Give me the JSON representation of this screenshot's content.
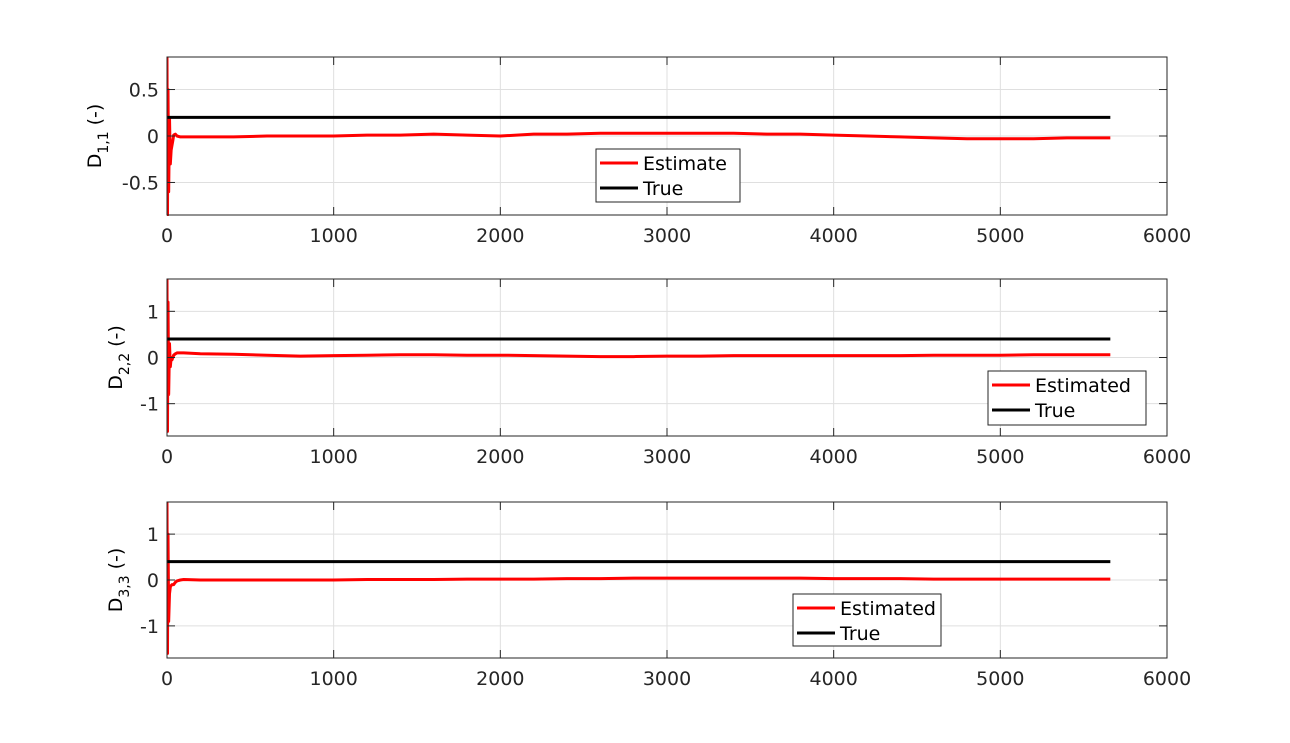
{
  "chart_data": [
    {
      "type": "line",
      "ylabel": {
        "base": "D",
        "sub": "1,1",
        "unit": "(-)"
      },
      "xlim": [
        0,
        6000
      ],
      "ylim": [
        -0.85,
        0.85
      ],
      "xticks": [
        0,
        1000,
        2000,
        3000,
        4000,
        5000,
        6000
      ],
      "yticks": [
        -0.5,
        0,
        0.5
      ],
      "ytick_labels": [
        "-0.5",
        "0",
        "0.5"
      ],
      "grid": true,
      "legend_position": "center",
      "series": [
        {
          "name": "Estimate",
          "color": "#ff0000",
          "x": [
            0,
            3,
            6,
            10,
            15,
            20,
            25,
            30,
            35,
            40,
            50,
            60,
            80,
            100,
            200,
            400,
            600,
            800,
            1000,
            1200,
            1400,
            1600,
            1800,
            2000,
            2200,
            2400,
            2600,
            2800,
            3000,
            3200,
            3400,
            3600,
            3800,
            4000,
            4200,
            4400,
            4600,
            4800,
            5000,
            5200,
            5400,
            5660
          ],
          "y": [
            0.85,
            -0.85,
            0.5,
            -0.6,
            0.2,
            -0.3,
            -0.15,
            -0.1,
            -0.05,
            0.01,
            0.02,
            0.0,
            -0.01,
            -0.01,
            -0.01,
            -0.01,
            0.0,
            0.0,
            0.0,
            0.01,
            0.01,
            0.02,
            0.01,
            0.0,
            0.02,
            0.02,
            0.03,
            0.03,
            0.03,
            0.03,
            0.03,
            0.02,
            0.02,
            0.01,
            0.0,
            -0.01,
            -0.02,
            -0.03,
            -0.03,
            -0.03,
            -0.02,
            -0.02
          ]
        },
        {
          "name": "True",
          "color": "#000000",
          "x": [
            0,
            5660
          ],
          "y": [
            0.2,
            0.2
          ]
        }
      ]
    },
    {
      "type": "line",
      "ylabel": {
        "base": "D",
        "sub": "2,2",
        "unit": "(-)"
      },
      "xlim": [
        0,
        6000
      ],
      "ylim": [
        -1.7,
        1.7
      ],
      "xticks": [
        0,
        1000,
        2000,
        3000,
        4000,
        5000,
        6000
      ],
      "yticks": [
        -1,
        0,
        1
      ],
      "ytick_labels": [
        "-1",
        "0",
        "1"
      ],
      "grid": true,
      "legend_position": "bottom-right",
      "series": [
        {
          "name": "Estimated",
          "color": "#ff0000",
          "x": [
            0,
            3,
            6,
            10,
            15,
            20,
            25,
            30,
            40,
            50,
            60,
            80,
            100,
            200,
            400,
            600,
            800,
            1000,
            1200,
            1400,
            1600,
            1800,
            2000,
            2200,
            2400,
            2600,
            2800,
            3000,
            3200,
            3400,
            3600,
            3800,
            4000,
            4200,
            4400,
            4600,
            4800,
            5000,
            5200,
            5400,
            5660
          ],
          "y": [
            1.7,
            -1.6,
            1.2,
            -0.8,
            0.3,
            -0.2,
            0.0,
            -0.05,
            0.05,
            0.08,
            0.1,
            0.1,
            0.1,
            0.08,
            0.07,
            0.05,
            0.03,
            0.04,
            0.05,
            0.06,
            0.06,
            0.05,
            0.05,
            0.04,
            0.03,
            0.02,
            0.02,
            0.03,
            0.03,
            0.04,
            0.04,
            0.04,
            0.04,
            0.04,
            0.04,
            0.05,
            0.05,
            0.05,
            0.06,
            0.06,
            0.06
          ]
        },
        {
          "name": "True",
          "color": "#000000",
          "x": [
            0,
            5660
          ],
          "y": [
            0.4,
            0.4
          ]
        }
      ]
    },
    {
      "type": "line",
      "ylabel": {
        "base": "D",
        "sub": "3,3",
        "unit": "(-)"
      },
      "xlim": [
        0,
        6000
      ],
      "ylim": [
        -1.7,
        1.7
      ],
      "xticks": [
        0,
        1000,
        2000,
        3000,
        4000,
        5000,
        6000
      ],
      "yticks": [
        -1,
        0,
        1
      ],
      "ytick_labels": [
        "-1",
        "0",
        "1"
      ],
      "grid": true,
      "legend_position": "bottom-center",
      "series": [
        {
          "name": "Estimated",
          "color": "#ff0000",
          "x": [
            0,
            3,
            6,
            10,
            15,
            20,
            25,
            30,
            40,
            50,
            60,
            80,
            100,
            200,
            400,
            600,
            800,
            1000,
            1200,
            1400,
            1600,
            1800,
            2000,
            2200,
            2400,
            2600,
            2800,
            3000,
            3200,
            3400,
            3600,
            3800,
            4000,
            4200,
            4400,
            4600,
            4800,
            5000,
            5200,
            5400,
            5660
          ],
          "y": [
            1.7,
            -1.6,
            1.0,
            -0.9,
            -0.3,
            -0.15,
            -0.12,
            -0.1,
            -0.1,
            -0.05,
            -0.02,
            0.0,
            0.01,
            0.0,
            0.0,
            0.0,
            0.0,
            0.0,
            0.01,
            0.01,
            0.01,
            0.02,
            0.02,
            0.02,
            0.03,
            0.03,
            0.04,
            0.04,
            0.04,
            0.04,
            0.04,
            0.04,
            0.03,
            0.03,
            0.03,
            0.02,
            0.02,
            0.02,
            0.02,
            0.02,
            0.02
          ]
        },
        {
          "name": "True",
          "color": "#000000",
          "x": [
            0,
            5660
          ],
          "y": [
            0.4,
            0.4
          ]
        }
      ]
    }
  ]
}
